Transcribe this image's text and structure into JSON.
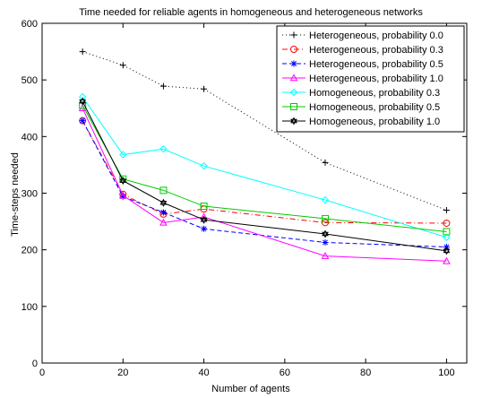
{
  "chart_data": {
    "type": "line",
    "title": "Time needed for reliable agents in homogeneous and heterogeneous networks",
    "xlabel": "Number of agents",
    "ylabel": "Time-steps needed",
    "xlim": [
      0,
      105
    ],
    "ylim": [
      0,
      600
    ],
    "xticks": [
      0,
      20,
      40,
      60,
      80,
      100
    ],
    "yticks": [
      0,
      100,
      200,
      300,
      400,
      500,
      600
    ],
    "grid": false,
    "legend_position": "top-right",
    "series": [
      {
        "name": "Heterogeneous, probability 0.0",
        "color": "#000000",
        "dash": "dotted",
        "marker": "plus",
        "x": [
          10,
          20,
          30,
          40,
          70,
          100
        ],
        "y": [
          550,
          526,
          489,
          484,
          354,
          270
        ]
      },
      {
        "name": "Heterogeneous, probability 0.3",
        "color": "#ff0000",
        "dash": "dashdot",
        "marker": "circle",
        "x": [
          10,
          20,
          30,
          40,
          70,
          100
        ],
        "y": [
          428,
          298,
          263,
          272,
          248,
          247
        ]
      },
      {
        "name": "Heterogeneous, probability 0.5",
        "color": "#0000ff",
        "dash": "dashed",
        "marker": "star",
        "x": [
          10,
          20,
          30,
          40,
          70,
          100
        ],
        "y": [
          428,
          294,
          266,
          237,
          213,
          205
        ]
      },
      {
        "name": "Heterogeneous, probability 1.0",
        "color": "#ff00ff",
        "dash": "solid",
        "marker": "triangle",
        "x": [
          10,
          20,
          30,
          40,
          70,
          100
        ],
        "y": [
          450,
          296,
          248,
          258,
          189,
          180
        ]
      },
      {
        "name": "Homogeneous, probability 0.3",
        "color": "#00ffff",
        "dash": "solid",
        "marker": "diamond",
        "x": [
          10,
          20,
          30,
          40,
          70,
          100
        ],
        "y": [
          470,
          368,
          378,
          348,
          288,
          222
        ]
      },
      {
        "name": "Homogeneous, probability 0.5",
        "color": "#00cc00",
        "dash": "solid",
        "marker": "square",
        "x": [
          10,
          20,
          30,
          40,
          70,
          100
        ],
        "y": [
          455,
          325,
          305,
          277,
          255,
          232
        ]
      },
      {
        "name": "Homogeneous, probability 1.0",
        "color": "#000000",
        "dash": "solid",
        "marker": "hexagram",
        "x": [
          10,
          20,
          30,
          40,
          70,
          100
        ],
        "y": [
          462,
          322,
          283,
          253,
          228,
          198
        ]
      }
    ]
  }
}
